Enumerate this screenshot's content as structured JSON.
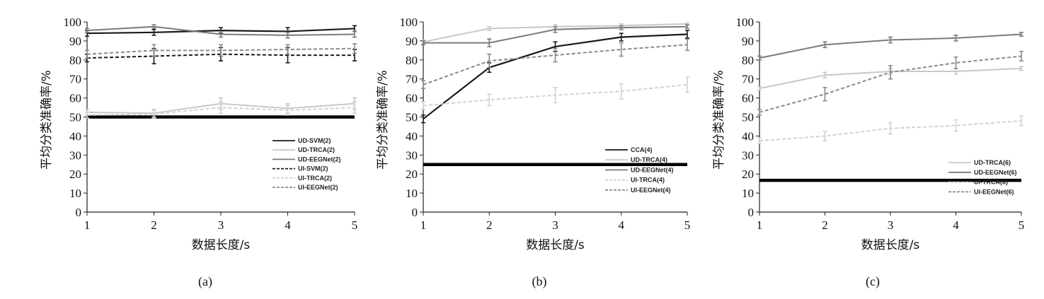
{
  "chart_data": [
    {
      "panel_label": "(a)",
      "type": "line",
      "xlabel": "数据长度/s",
      "ylabel": "平均分类准确率/%",
      "x": [
        1,
        2,
        3,
        4,
        5
      ],
      "xlim": [
        1,
        5
      ],
      "ylim": [
        0,
        100
      ],
      "yticks": [
        0,
        10,
        20,
        30,
        40,
        50,
        60,
        70,
        80,
        90,
        100
      ],
      "chance_level": 50,
      "legend_position": "lower-right",
      "series": [
        {
          "name": "UD-SVM(2)",
          "values": [
            94,
            94.5,
            95.5,
            95,
            96.5
          ],
          "err": [
            1.5,
            1.5,
            1.5,
            2,
            1.5
          ],
          "color": "#1a1a1a",
          "dash": "solid",
          "width": 2.2
        },
        {
          "name": "UD-TRCA(2)",
          "values": [
            52.5,
            52,
            57,
            54.5,
            57
          ],
          "err": [
            1.5,
            2,
            3,
            2.5,
            3
          ],
          "color": "#c8c8c8",
          "dash": "solid",
          "width": 2
        },
        {
          "name": "UD-EEGNet(2)",
          "values": [
            95.5,
            97.5,
            93.5,
            93,
            93.5
          ],
          "err": [
            1,
            1,
            1.5,
            1.5,
            1.5
          ],
          "color": "#7a7a7a",
          "dash": "solid",
          "width": 2
        },
        {
          "name": "UI-SVM(2)",
          "values": [
            81,
            82,
            83,
            82.5,
            82.5
          ],
          "err": [
            2,
            4,
            3.5,
            4,
            3
          ],
          "color": "#1a1a1a",
          "dash": "5,3",
          "width": 2
        },
        {
          "name": "UI-TRCA(2)",
          "values": [
            51,
            51.5,
            55,
            53.5,
            55
          ],
          "err": [
            1.5,
            2,
            3,
            2.5,
            3
          ],
          "color": "#d2d2d2",
          "dash": "5,3",
          "width": 2
        },
        {
          "name": "UI-EEGNet(2)",
          "values": [
            83,
            85,
            85,
            85.5,
            86
          ],
          "err": [
            2,
            3,
            3,
            2.5,
            2.5
          ],
          "color": "#8a8a8a",
          "dash": "5,3",
          "width": 2
        }
      ]
    },
    {
      "panel_label": "(b)",
      "type": "line",
      "xlabel": "数据长度/s",
      "ylabel": "平均分类准确率/%",
      "x": [
        1,
        2,
        3,
        4,
        5
      ],
      "xlim": [
        1,
        5
      ],
      "ylim": [
        0,
        100
      ],
      "yticks": [
        0,
        10,
        20,
        30,
        40,
        50,
        60,
        70,
        80,
        90,
        100
      ],
      "chance_level": 25,
      "legend_position": "lower-right",
      "series": [
        {
          "name": "CCA(4)",
          "values": [
            49,
            76,
            87,
            92,
            93.5
          ],
          "err": [
            2,
            2.5,
            2.5,
            2,
            2
          ],
          "color": "#1a1a1a",
          "dash": "solid",
          "width": 2.2
        },
        {
          "name": "UD-TRCA(4)",
          "values": [
            89.5,
            96.5,
            97.5,
            98,
            99
          ],
          "err": [
            1,
            1,
            1,
            1,
            0.5
          ],
          "color": "#c8c8c8",
          "dash": "solid",
          "width": 2
        },
        {
          "name": "UD-EEGNet(4)",
          "values": [
            89,
            89,
            96,
            97,
            97.5
          ],
          "err": [
            1,
            2,
            1.5,
            1,
            1
          ],
          "color": "#7a7a7a",
          "dash": "solid",
          "width": 2
        },
        {
          "name": "UI-TRCA(4)",
          "values": [
            56,
            59,
            61.5,
            63.5,
            67
          ],
          "err": [
            2,
            3,
            4,
            4,
            4
          ],
          "color": "#d2d2d2",
          "dash": "5,3",
          "width": 2
        },
        {
          "name": "UI-EEGNet(4)",
          "values": [
            67,
            79.5,
            82.5,
            85.5,
            88
          ],
          "err": [
            2,
            3.5,
            3.5,
            3.5,
            3
          ],
          "color": "#8a8a8a",
          "dash": "5,3",
          "width": 2
        }
      ]
    },
    {
      "panel_label": "(c)",
      "type": "line",
      "xlabel": "数据长度/s",
      "ylabel": "平均分类准确率/%",
      "x": [
        1,
        2,
        3,
        4,
        5
      ],
      "xlim": [
        1,
        5
      ],
      "ylim": [
        0,
        100
      ],
      "yticks": [
        0,
        10,
        20,
        30,
        40,
        50,
        60,
        70,
        80,
        90,
        100
      ],
      "chance_level": 16.7,
      "legend_position": "lower-right",
      "series": [
        {
          "name": "UD-TRCA(6)",
          "values": [
            65,
            72,
            74,
            74,
            75.5
          ],
          "err": [
            1,
            1.5,
            1.5,
            1.5,
            1
          ],
          "color": "#c8c8c8",
          "dash": "solid",
          "width": 2
        },
        {
          "name": "UD-EEGNet(6)",
          "values": [
            81,
            88,
            90.5,
            91.5,
            93.5
          ],
          "err": [
            1,
            1.5,
            1.5,
            1.5,
            1
          ],
          "color": "#7a7a7a",
          "dash": "solid",
          "width": 2
        },
        {
          "name": "UI-TRCA(6)",
          "values": [
            37.5,
            40,
            44,
            45.5,
            48
          ],
          "err": [
            1.5,
            2.5,
            3,
            3,
            2.5
          ],
          "color": "#d2d2d2",
          "dash": "5,3",
          "width": 2
        },
        {
          "name": "UI-EEGNet(6)",
          "values": [
            52.5,
            62,
            73.5,
            78.5,
            82
          ],
          "err": [
            1.5,
            3.5,
            3.5,
            3,
            2.5
          ],
          "color": "#8a8a8a",
          "dash": "5,3",
          "width": 2
        }
      ]
    }
  ]
}
